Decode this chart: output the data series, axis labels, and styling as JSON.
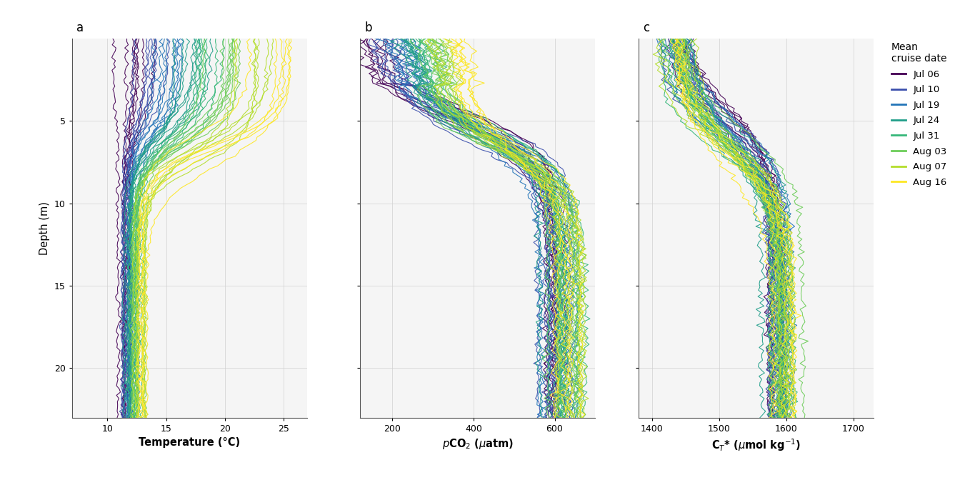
{
  "cruise_dates": [
    "Jul 06",
    "Jul 10",
    "Jul 19",
    "Jul 24",
    "Jul 31",
    "Aug 03",
    "Aug 07",
    "Aug 16"
  ],
  "colors": [
    "#440154",
    "#3b4fac",
    "#2475b8",
    "#1f9e89",
    "#35b779",
    "#6dcd59",
    "#b4de2c",
    "#fde725"
  ],
  "depth_range": [
    0,
    23
  ],
  "depth_ticks": [
    5,
    10,
    15,
    20
  ],
  "temp_range": [
    7,
    27
  ],
  "temp_ticks": [
    10,
    15,
    20,
    25
  ],
  "pco2_range": [
    120,
    700
  ],
  "pco2_ticks": [
    200,
    400,
    600
  ],
  "ct_range": [
    1380,
    1730
  ],
  "ct_ticks": [
    1400,
    1500,
    1600,
    1700
  ],
  "ylabel": "Depth (m)",
  "legend_title": "Mean\ncruise date",
  "panel_labels": [
    "a",
    "b",
    "c"
  ],
  "background_color": "#f5f5f5",
  "grid_color": "#d0d0d0",
  "linewidth": 0.8,
  "n_profiles_per_cruise": [
    8,
    7,
    9,
    8,
    7,
    8,
    7,
    6
  ]
}
